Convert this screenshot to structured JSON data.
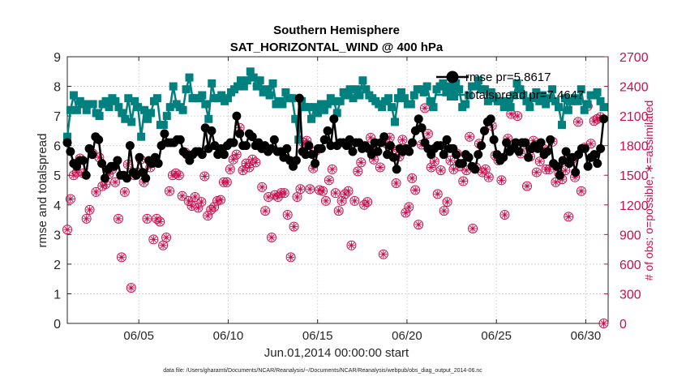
{
  "chart_data": {
    "type": "line",
    "title": "Southern Hemisphere",
    "subtitle": "SAT_HORIZONTAL_WIND @ 400 hPa",
    "xlabel": "Jun.01,2014 00:00:00 start",
    "ylabel_left": "rmse and totalspread",
    "ylabel_right": "# of obs: o=possible; ∗=assimilated",
    "footer": "data file: /Users/gharamti/Documents/NCAR/Reanalysis/~/Documents/NCAR/Reanalysis/webpub/obs_diag_output_2014-06.nc",
    "xlim": [
      1,
      31.25
    ],
    "ylim_left": [
      0,
      9
    ],
    "ylim_right": [
      0,
      2700
    ],
    "x_ticks": [
      5,
      10,
      15,
      20,
      25,
      30
    ],
    "x_tick_labels": [
      "06/05",
      "06/10",
      "06/15",
      "06/20",
      "06/25",
      "06/30"
    ],
    "y_ticks_left": [
      "0",
      "1",
      "2",
      "3",
      "4",
      "5",
      "6",
      "7",
      "8",
      "9"
    ],
    "y_ticks_right": [
      "0",
      "300",
      "600",
      "900",
      "1200",
      "1500",
      "1800",
      "2100",
      "2400",
      "2700"
    ],
    "grid": true,
    "legend_placement": "top-right",
    "colors": {
      "rmse": "#000000",
      "spread": "#00807f",
      "obs": "#c8104f"
    },
    "series": [
      {
        "name": "rmse pr=5.8617",
        "marker": "circle",
        "axis": "left",
        "values": [
          6.1,
          5.8,
          5.4,
          5.3,
          5.5,
          5.5,
          5.0,
          5.9,
          5.7,
          6.3,
          6.2,
          5.4,
          4.9,
          5.2,
          5.3,
          5.3,
          5.5,
          5.0,
          5.0,
          4.9,
          6.0,
          5.1,
          5.0,
          5.6,
          5.1,
          4.9,
          5.5,
          5.4,
          5.6,
          5.4,
          6.0,
          6.4,
          6.1,
          6.1,
          6.1,
          6.2,
          6.2,
          5.8,
          5.7,
          5.5,
          5.7,
          5.8,
          5.8,
          5.7,
          6.6,
          5.9,
          6.5,
          6.0,
          5.7,
          5.9,
          5.7,
          6.0,
          6.1,
          6.1,
          7.0,
          6.4,
          6.0,
          6.0,
          6.4,
          6.3,
          6.0,
          6.1,
          5.9,
          6.0,
          5.8,
          5.9,
          6.2,
          5.8,
          5.8,
          5.6,
          5.9,
          5.5,
          5.3,
          5.5,
          7.6,
          5.8,
          5.7,
          6.0,
          5.7,
          5.4,
          5.9,
          5.9,
          6.2,
          6.5,
          6.0,
          6.9,
          6.0,
          6.1,
          6.1,
          6.0,
          6.2,
          5.8,
          6.1,
          6.1,
          5.9,
          6.0,
          5.9,
          5.7,
          6.1,
          5.8,
          6.1,
          6.3,
          5.7,
          6.0,
          5.6,
          5.2,
          5.9,
          5.8,
          5.9,
          5.8,
          6.1,
          6.5,
          6.9,
          6.6,
          6.1,
          5.9,
          5.7,
          5.9,
          6.0,
          6.0,
          5.7,
          6.2,
          5.9,
          5.9,
          5.7,
          5.4,
          5.4,
          5.7,
          5.6,
          5.3,
          5.2,
          5.7,
          6.0,
          6.5,
          6.8,
          6.9,
          6.2,
          5.7,
          5.5,
          5.6,
          6.1,
          5.8,
          5.9,
          6.1,
          5.8,
          6.1,
          6.1,
          5.6,
          5.9,
          6.0,
          5.9,
          6.1,
          5.7,
          5.8,
          6.2,
          5.4,
          5.3,
          5.0,
          5.5,
          5.8,
          5.4,
          5.6,
          5.1,
          5.7,
          5.9,
          5.9,
          5.3,
          5.6,
          5.7,
          5.4,
          5.9,
          6.9
        ]
      },
      {
        "name": "totalspread pr=7.4647",
        "marker": "square",
        "axis": "left",
        "values": [
          6.3,
          7.2,
          7.7,
          7.2,
          7.5,
          7.4,
          7.2,
          7.4,
          7.4,
          7.1,
          7.0,
          7.4,
          7.5,
          7.3,
          7.6,
          7.5,
          7.3,
          7.1,
          6.9,
          7.6,
          6.8,
          7.5,
          7.3,
          6.3,
          7.2,
          6.9,
          7.1,
          7.5,
          7.6,
          6.7,
          6.7,
          7.0,
          7.3,
          8.0,
          7.4,
          7.3,
          7.2,
          7.9,
          8.3,
          7.6,
          7.6,
          7.6,
          7.7,
          7.4,
          6.9,
          8.1,
          7.6,
          7.6,
          7.7,
          7.5,
          7.6,
          7.8,
          7.9,
          8.0,
          8.2,
          8.0,
          8.2,
          8.5,
          8.3,
          8.0,
          8.2,
          7.8,
          7.9,
          7.7,
          8.1,
          7.4,
          7.5,
          7.4,
          7.8,
          7.6,
          7.6,
          6.9,
          6.2,
          7.5,
          7.3,
          7.3,
          6.9,
          7.3,
          7.1,
          7.4,
          7.2,
          7.4,
          7.6,
          7.5,
          7.1,
          7.5,
          7.8,
          7.7,
          7.9,
          7.6,
          7.9,
          7.7,
          8.2,
          7.9,
          7.7,
          7.6,
          7.5,
          7.4,
          7.3,
          7.5,
          7.6,
          7.3,
          6.8,
          7.6,
          7.8,
          7.6,
          7.4,
          7.4,
          7.7,
          7.9,
          7.9,
          7.8,
          8.0,
          7.5,
          7.3,
          7.9,
          8.0,
          8.1,
          7.8,
          8.0,
          7.8,
          8.1,
          7.9,
          7.3,
          7.4,
          7.7,
          8.0,
          8.0,
          8.2,
          7.9,
          7.9,
          7.5,
          7.8,
          7.6,
          7.5,
          7.5,
          7.3,
          7.5,
          7.3,
          7.7,
          8.1,
          7.9,
          7.7,
          7.5,
          7.3,
          7.6,
          7.8,
          7.5,
          7.7,
          7.4,
          7.6,
          7.9,
          7.5,
          7.3,
          6.7,
          7.6,
          7.2,
          7.5,
          7.6,
          7.5,
          7.9,
          7.2,
          7.4,
          7.7,
          7.7,
          7.8,
          7.5,
          7.3
        ]
      },
      {
        "name": "# of obs possible",
        "marker": "open-circle",
        "axis": "right",
        "values": [
          950,
          1260,
          1500,
          1530,
          1670,
          1520,
          1060,
          1150,
          1720,
          1330,
          1680,
          1390,
          1410,
          1510,
          1560,
          1430,
          1060,
          670,
          1330,
          1610,
          360,
          1500,
          1530,
          1660,
          1430,
          1060,
          1580,
          850,
          1060,
          1030,
          790,
          870,
          1340,
          1500,
          1520,
          1500,
          1290,
          1730,
          1240,
          1190,
          1280,
          1170,
          1230,
          1490,
          1090,
          1150,
          1180,
          1240,
          1250,
          1430,
          1430,
          1560,
          1660,
          1710,
          1980,
          1550,
          1620,
          1580,
          1660,
          1630,
          1800,
          1380,
          1140,
          1280,
          870,
          1300,
          1280,
          1320,
          1320,
          1100,
          670,
          980,
          1280,
          1360,
          1830,
          1850,
          1360,
          1570,
          1750,
          1350,
          1340,
          1240,
          1450,
          1560,
          1320,
          1140,
          1240,
          1310,
          1340,
          790,
          1240,
          1540,
          1630,
          1200,
          1230,
          1880,
          1660,
          1820,
          1580,
          700,
          1820,
          1880,
          1760,
          1420,
          1690,
          1860,
          1120,
          1180,
          1470,
          1350,
          1000,
          1810,
          2180,
          1920,
          1580,
          1640,
          1310,
          1550,
          1140,
          1230,
          1650,
          1560,
          1720,
          1590,
          1440,
          1550,
          1890,
          960,
          1580,
          1820,
          1530,
          1560,
          1480,
          2000,
          1700,
          1650,
          1450,
          1100,
          1870,
          2120,
          1820,
          2100,
          1720,
          1810,
          1390,
          1690,
          1850,
          1530,
          1640,
          1770,
          1560,
          1560,
          1840,
          1430,
          1520,
          1460,
          1550,
          1080,
          1660,
          1480,
          2040,
          1340,
          1780,
          2200,
          1820,
          2050,
          2070,
          2090,
          0
        ]
      },
      {
        "name": "# of obs assimilated",
        "marker": "asterisk",
        "axis": "right",
        "values": [
          950,
          1260,
          1500,
          1530,
          1670,
          1520,
          1060,
          1150,
          1720,
          1330,
          1680,
          1390,
          1410,
          1510,
          1560,
          1430,
          1060,
          670,
          1330,
          1610,
          360,
          1500,
          1530,
          1660,
          1430,
          1060,
          1580,
          850,
          1060,
          1030,
          790,
          870,
          1340,
          1500,
          1520,
          1500,
          1290,
          1730,
          1240,
          1190,
          1280,
          1170,
          1230,
          1490,
          1090,
          1150,
          1180,
          1240,
          1250,
          1430,
          1430,
          1560,
          1660,
          1710,
          1980,
          1550,
          1620,
          1580,
          1660,
          1630,
          1800,
          1380,
          1140,
          1280,
          870,
          1300,
          1280,
          1320,
          1320,
          1100,
          670,
          980,
          1280,
          1360,
          1830,
          1850,
          1360,
          1570,
          1750,
          1350,
          1340,
          1240,
          1450,
          1560,
          1320,
          1140,
          1240,
          1310,
          1340,
          790,
          1240,
          1540,
          1630,
          1200,
          1230,
          1880,
          1660,
          1820,
          1580,
          700,
          1820,
          1880,
          1760,
          1420,
          1690,
          1860,
          1120,
          1180,
          1470,
          1350,
          1000,
          1810,
          2180,
          1920,
          1580,
          1640,
          1310,
          1550,
          1140,
          1230,
          1650,
          1560,
          1720,
          1590,
          1440,
          1550,
          1890,
          960,
          1580,
          1820,
          1530,
          1560,
          1480,
          2000,
          1700,
          1650,
          1450,
          1100,
          1870,
          2120,
          1820,
          2100,
          1720,
          1810,
          1390,
          1690,
          1850,
          1530,
          1640,
          1770,
          1560,
          1560,
          1840,
          1430,
          1520,
          1460,
          1550,
          1080,
          1660,
          1480,
          2040,
          1340,
          1780,
          2200,
          1820,
          2050,
          2070,
          2090,
          0
        ]
      }
    ],
    "legend": [
      {
        "label": "rmse pr=5.8617",
        "marker": "circle"
      },
      {
        "label": "totalspread pr=7.4647",
        "marker": "square"
      }
    ]
  }
}
